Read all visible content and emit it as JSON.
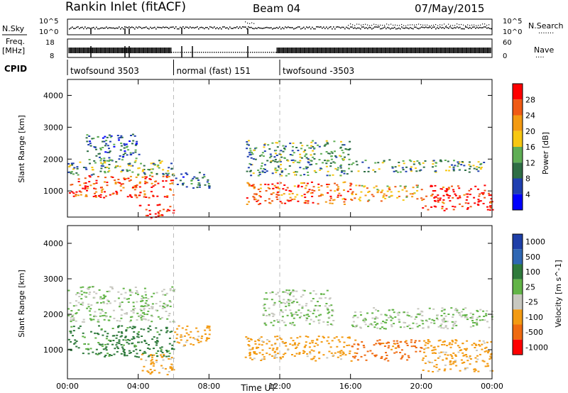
{
  "header": {
    "title": "Rankin Inlet (fitACF)",
    "beam": "Beam 04",
    "date": "07/May/2015"
  },
  "status_panels": {
    "nsky_label": "N.Sky",
    "nsearch_label": "N.Search",
    "freq_label_1": "Freq.",
    "freq_label_2": "[MHz]",
    "nave_label": "Nave",
    "cpid_label": "CPID",
    "left_ticks_top": [
      "10^5",
      "10^0"
    ],
    "right_ticks_top": [
      "10^5",
      "10^0"
    ],
    "left_ticks_freq": [
      "18",
      "8"
    ],
    "right_ticks_nave": [
      "60",
      "0"
    ]
  },
  "cpid_segments": [
    {
      "label": "twofsound 3503",
      "start_h": 0,
      "end_h": 6
    },
    {
      "label": "normal (fast) 151",
      "start_h": 6,
      "end_h": 12
    },
    {
      "label": "twofsound -3503",
      "start_h": 12,
      "end_h": 24
    }
  ],
  "colors": {
    "power_scale": [
      "#0000ff",
      "#1f3fb0",
      "#2e6e45",
      "#5fae55",
      "#f7c712",
      "#f39a12",
      "#f05a14",
      "#ff0000"
    ],
    "velocity_scale": [
      "#1e3fa8",
      "#2f67b3",
      "#2f7a3c",
      "#62b447",
      "#c8c8c0",
      "#f39a12",
      "#ef6a10",
      "#ff0000"
    ],
    "ground_scatter": "#bbbbbb"
  },
  "chart_data": [
    {
      "type": "heatmap",
      "name": "power",
      "xlabel": "Time UT",
      "ylabel": "Slant Range [km]",
      "x_ticks": [
        "00:00",
        "04:00",
        "08:00",
        "12:00",
        "16:00",
        "20:00",
        "00:00"
      ],
      "xlim_hours": [
        0,
        24
      ],
      "y_ticks": [
        1000,
        2000,
        3000,
        4000
      ],
      "ylim_km": [
        180,
        4500
      ],
      "colorbar_label": "Power [dB]",
      "colorbar_ticks": [
        4,
        8,
        12,
        16,
        20,
        24,
        28
      ],
      "vertical_markers_hours": [
        6,
        12
      ],
      "regions": [
        {
          "t": [
            0.0,
            6.0
          ],
          "r": [
            800,
            1500
          ],
          "level": 26
        },
        {
          "t": [
            0.0,
            6.0
          ],
          "r": [
            1500,
            2000
          ],
          "level": 13
        },
        {
          "t": [
            1.0,
            4.0
          ],
          "r": [
            2000,
            2800
          ],
          "level": 10
        },
        {
          "t": [
            4.0,
            6.0
          ],
          "r": [
            180,
            600
          ],
          "level": 28
        },
        {
          "t": [
            6.0,
            8.0
          ],
          "r": [
            1100,
            1600
          ],
          "level": 10
        },
        {
          "t": [
            10.0,
            16.0
          ],
          "r": [
            600,
            1300
          ],
          "level": 24
        },
        {
          "t": [
            10.0,
            16.0
          ],
          "r": [
            1500,
            2600
          ],
          "level": 12
        },
        {
          "t": [
            16.0,
            20.0
          ],
          "r": [
            700,
            1200
          ],
          "level": 20
        },
        {
          "t": [
            16.0,
            23.5
          ],
          "r": [
            1600,
            2000
          ],
          "level": 13
        },
        {
          "t": [
            20.0,
            24.0
          ],
          "r": [
            400,
            1200
          ],
          "level": 28
        }
      ]
    },
    {
      "type": "heatmap",
      "name": "velocity",
      "xlabel": "Time UT",
      "ylabel": "Slant Range [km]",
      "x_ticks": [
        "00:00",
        "04:00",
        "08:00",
        "12:00",
        "16:00",
        "20:00",
        "00:00"
      ],
      "xlim_hours": [
        0,
        24
      ],
      "y_ticks": [
        1000,
        2000,
        3000,
        4000
      ],
      "ylim_km": [
        180,
        4500
      ],
      "colorbar_label": "Velocity [m s^-1]",
      "colorbar_ticks": [
        "1000",
        "500",
        "100",
        "25",
        "-25",
        "-100",
        "-500",
        "-1000"
      ],
      "vertical_markers_hours": [
        6,
        12
      ],
      "regions": [
        {
          "t": [
            0.0,
            6.0
          ],
          "r": [
            800,
            1700
          ],
          "level": 100
        },
        {
          "t": [
            0.0,
            6.0
          ],
          "r": [
            1800,
            2800
          ],
          "level": 0
        },
        {
          "t": [
            4.0,
            6.0
          ],
          "r": [
            300,
            900
          ],
          "level": -100
        },
        {
          "t": [
            6.0,
            8.0
          ],
          "r": [
            1100,
            1700
          ],
          "level": -100
        },
        {
          "t": [
            10.0,
            16.0
          ],
          "r": [
            700,
            1400
          ],
          "level": -100
        },
        {
          "t": [
            11.0,
            15.0
          ],
          "r": [
            1700,
            2700
          ],
          "level": 0
        },
        {
          "t": [
            16.0,
            20.0
          ],
          "r": [
            700,
            1300
          ],
          "level": -500
        },
        {
          "t": [
            16.0,
            24.0
          ],
          "r": [
            1600,
            2200
          ],
          "level": 0
        },
        {
          "t": [
            20.0,
            24.0
          ],
          "r": [
            400,
            1300
          ],
          "level": -100
        }
      ]
    }
  ]
}
